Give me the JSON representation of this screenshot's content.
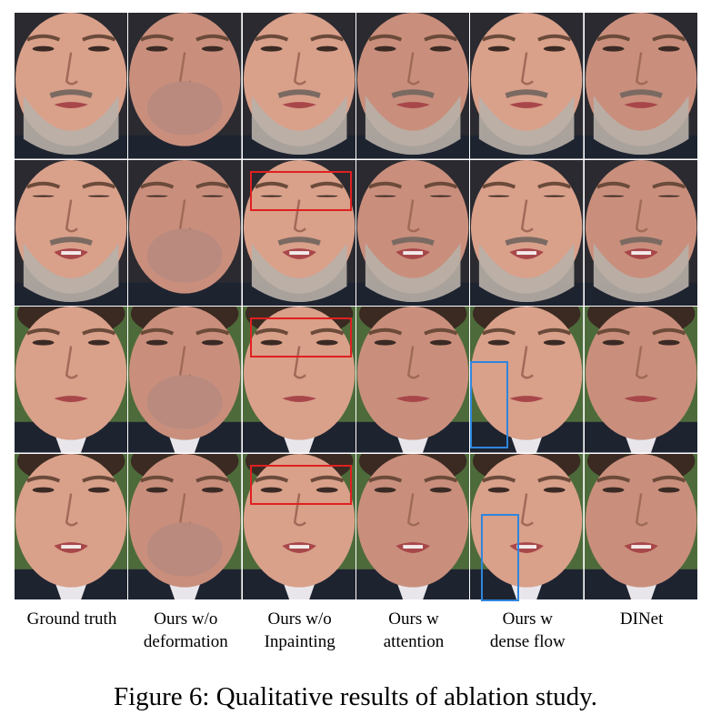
{
  "figure": {
    "caption": "Figure 6: Qualitative results of ablation study.",
    "columns": [
      {
        "label": "Ground truth"
      },
      {
        "label": "Ours w/o\ndeformation"
      },
      {
        "label": "Ours w/o\nInpainting"
      },
      {
        "label": "Ours w\nattention"
      },
      {
        "label": "Ours w\ndense flow"
      },
      {
        "label": "DINet"
      }
    ],
    "rows": [
      {
        "subject": "man-gray-beard",
        "frame": 1
      },
      {
        "subject": "man-gray-beard",
        "frame": 2
      },
      {
        "subject": "man-dark-hair",
        "frame": 1
      },
      {
        "subject": "man-dark-hair",
        "frame": 2
      }
    ],
    "blurred_mouth_column": 1,
    "highlights": [
      {
        "row": 1,
        "col": 2,
        "color": "#e02020",
        "meaning": "eye-region artifact"
      },
      {
        "row": 2,
        "col": 2,
        "color": "#e02020",
        "meaning": "eye-region artifact"
      },
      {
        "row": 3,
        "col": 2,
        "color": "#e02020",
        "meaning": "eye-region artifact"
      },
      {
        "row": 2,
        "col": 4,
        "color": "#2e86de",
        "meaning": "cheek distortion"
      },
      {
        "row": 3,
        "col": 4,
        "color": "#2e86de",
        "meaning": "cheek distortion"
      }
    ],
    "colors": {
      "skin_a": "#d9a08a",
      "skin_b": "#c98f7c",
      "beard": "#b8b0a8",
      "hair_dark": "#3a2a22",
      "suit": "#1e2330",
      "shirt": "#e8e6ea",
      "bg_green": "#4d6b3a",
      "bg_dark": "#2a2a30"
    }
  }
}
